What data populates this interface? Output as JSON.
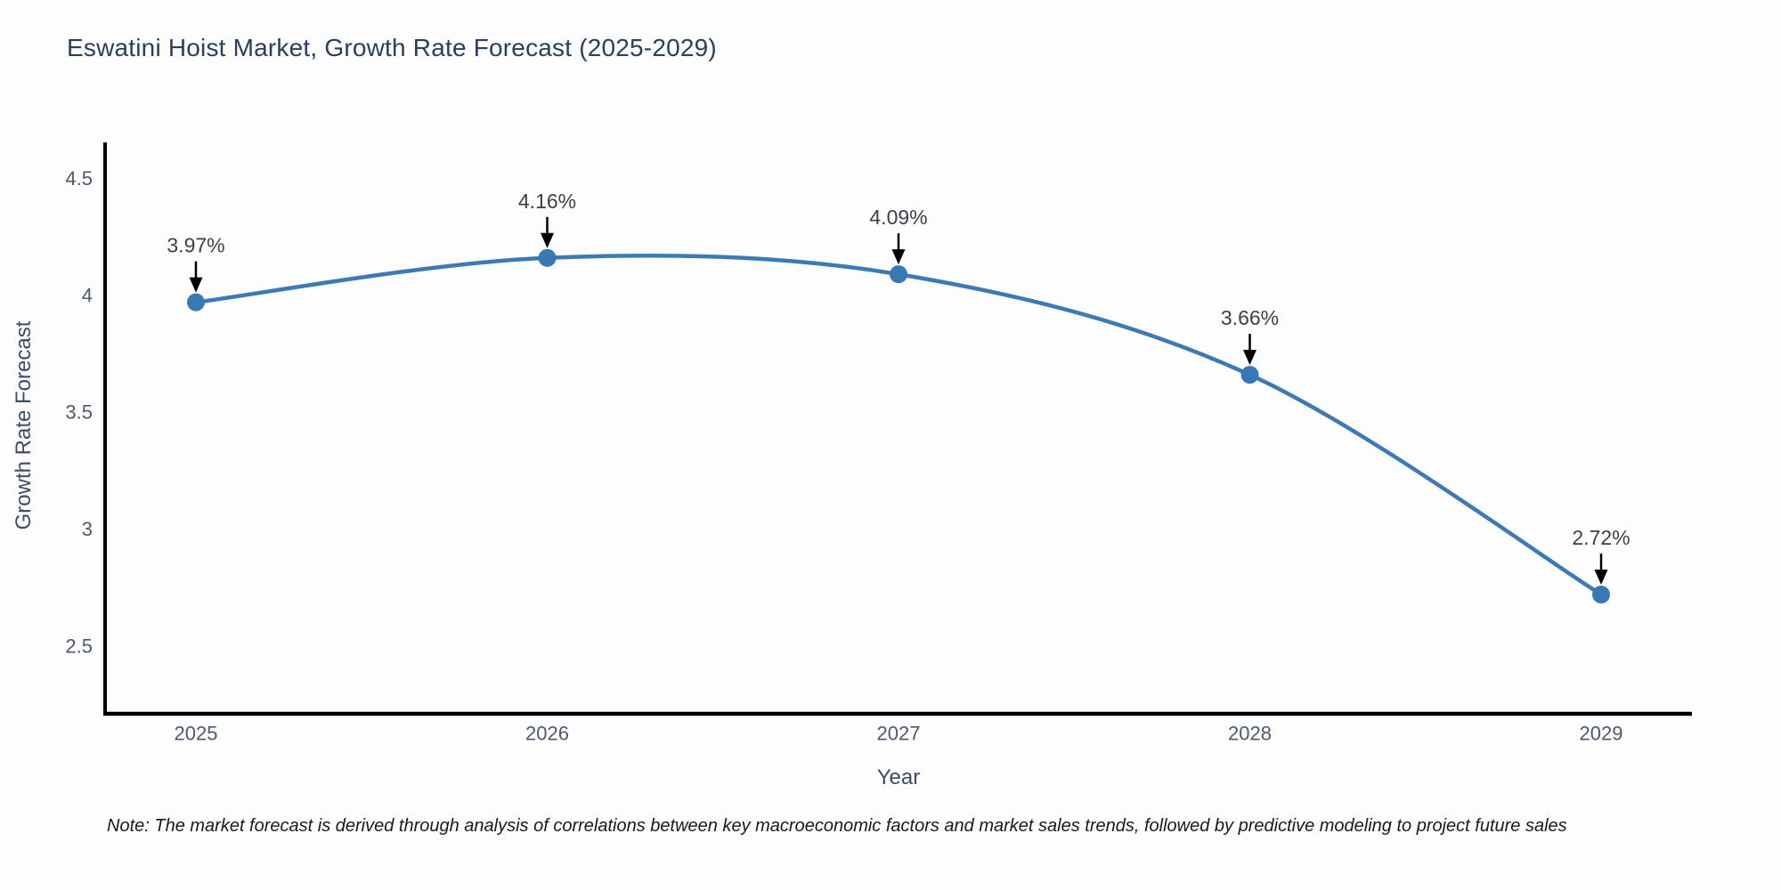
{
  "title": "Eswatini Hoist Market, Growth Rate Forecast (2025-2029)",
  "note": "Note: The market forecast is derived through analysis of correlations between key macroeconomic factors and market sales trends, followed by predictive modeling to project future sales",
  "chart_data": {
    "type": "line",
    "title": "Eswatini Hoist Market, Growth Rate Forecast (2025-2029)",
    "xlabel": "Year",
    "ylabel": "Growth Rate Forecast",
    "categories": [
      "2025",
      "2026",
      "2027",
      "2028",
      "2029"
    ],
    "values": [
      3.97,
      4.16,
      4.09,
      3.66,
      2.72
    ],
    "point_labels": [
      "3.97%",
      "4.16%",
      "4.09%",
      "3.66%",
      "2.72%"
    ],
    "ytick_values": [
      4.5,
      4,
      3.5,
      3,
      2.5
    ],
    "ytick_labels": [
      "4.5",
      "4",
      "3.5",
      "3",
      "2.5"
    ],
    "ylim": [
      2.21,
      4.654
    ],
    "grid": false,
    "legend_position": "none",
    "line_color": "#3d7ab5",
    "marker_color": "#3878b4",
    "axis_color": "#000000",
    "annotation_color": "#000000"
  }
}
